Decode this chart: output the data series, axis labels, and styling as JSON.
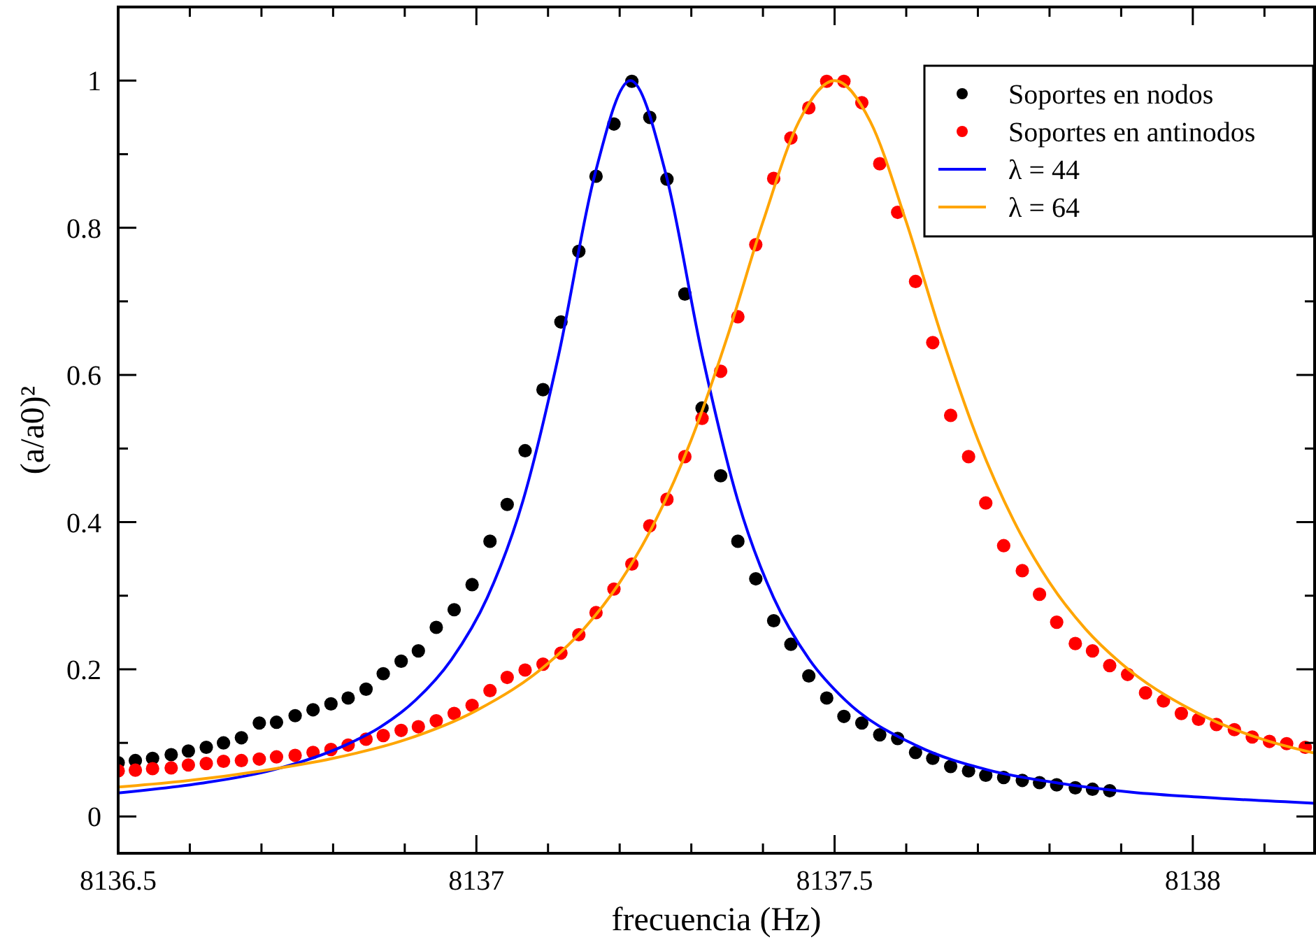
{
  "chart_data": {
    "type": "scatter",
    "xlabel": "frecuencia (Hz)",
    "ylabel": "(a/a0)²",
    "xlim": [
      8136.5,
      8138.17
    ],
    "ylim": [
      -0.05,
      1.1
    ],
    "xticks": [
      8136.5,
      {
        "value": 8136.6,
        "label": null
      },
      {
        "value": 8136.7,
        "label": null
      },
      {
        "value": 8136.8,
        "label": null
      },
      {
        "value": 8136.9,
        "label": null
      },
      8137,
      {
        "value": 8137.1,
        "label": null
      },
      {
        "value": 8137.2,
        "label": null
      },
      {
        "value": 8137.3,
        "label": null
      },
      {
        "value": 8137.4,
        "label": null
      },
      8137.5,
      {
        "value": 8137.6,
        "label": null
      },
      {
        "value": 8137.7,
        "label": null
      },
      {
        "value": 8137.8,
        "label": null
      },
      {
        "value": 8137.9,
        "label": null
      },
      8138,
      {
        "value": 8138.1,
        "label": null
      }
    ],
    "yticks": [
      0,
      {
        "value": 0.1,
        "label": null
      },
      0.2,
      {
        "value": 0.3,
        "label": null
      },
      0.4,
      {
        "value": 0.5,
        "label": null
      },
      0.6,
      {
        "value": 0.7,
        "label": null
      },
      0.8,
      {
        "value": 0.9,
        "label": null
      },
      1
    ],
    "grid": false,
    "legend": "top right",
    "series": [
      {
        "name": "Soportes en nodos",
        "color": "#000000",
        "marker": "circle",
        "x": [
          8136.5,
          8136.524,
          8136.548,
          8136.574,
          8136.598,
          8136.623,
          8136.647,
          8136.672,
          8136.697,
          8136.721,
          8136.747,
          8136.772,
          8136.797,
          8136.821,
          8136.846,
          8136.87,
          8136.895,
          8136.919,
          8136.944,
          8136.969,
          8136.994,
          8137.019,
          8137.043,
          8137.068,
          8137.093,
          8137.118,
          8137.143,
          8137.167,
          8137.192,
          8137.217,
          8137.242,
          8137.266,
          8137.291,
          8137.315,
          8137.341,
          8137.365,
          8137.39,
          8137.415,
          8137.439,
          8137.464,
          8137.489,
          8137.513,
          8137.538,
          8137.563,
          8137.588,
          8137.613,
          8137.637,
          8137.662,
          8137.687,
          8137.711,
          8137.736,
          8137.762,
          8137.786,
          8137.81,
          8137.836,
          8137.86,
          8137.884
        ],
        "values": [
          0.073,
          0.076,
          0.079,
          0.084,
          0.089,
          0.094,
          0.1,
          0.107,
          0.127,
          0.128,
          0.137,
          0.145,
          0.153,
          0.161,
          0.173,
          0.194,
          0.211,
          0.225,
          0.257,
          0.281,
          0.315,
          0.374,
          0.424,
          0.497,
          0.58,
          0.672,
          0.768,
          0.87,
          0.941,
          0.999,
          0.95,
          0.866,
          0.71,
          0.555,
          0.463,
          0.374,
          0.323,
          0.266,
          0.234,
          0.191,
          0.161,
          0.136,
          0.127,
          0.111,
          0.106,
          0.087,
          0.079,
          0.068,
          0.062,
          0.056,
          0.053,
          0.049,
          0.046,
          0.043,
          0.039,
          0.037,
          0.035
        ]
      },
      {
        "name": "Soportes en antinodos",
        "color": "#ff0000",
        "marker": "circle",
        "x": [
          8136.5,
          8136.524,
          8136.548,
          8136.574,
          8136.598,
          8136.623,
          8136.647,
          8136.672,
          8136.697,
          8136.721,
          8136.747,
          8136.772,
          8136.797,
          8136.821,
          8136.846,
          8136.87,
          8136.895,
          8136.919,
          8136.944,
          8136.969,
          8136.994,
          8137.019,
          8137.043,
          8137.068,
          8137.093,
          8137.118,
          8137.143,
          8137.167,
          8137.192,
          8137.217,
          8137.242,
          8137.266,
          8137.291,
          8137.315,
          8137.341,
          8137.365,
          8137.39,
          8137.415,
          8137.439,
          8137.464,
          8137.489,
          8137.513,
          8137.538,
          8137.563,
          8137.588,
          8137.613,
          8137.637,
          8137.662,
          8137.687,
          8137.711,
          8137.736,
          8137.762,
          8137.786,
          8137.81,
          8137.836,
          8137.86,
          8137.884,
          8137.909,
          8137.934,
          8137.959,
          8137.984,
          8138.008,
          8138.033,
          8138.058,
          8138.083,
          8138.107,
          8138.131,
          8138.157
        ],
        "values": [
          0.062,
          0.063,
          0.065,
          0.066,
          0.07,
          0.072,
          0.075,
          0.076,
          0.078,
          0.081,
          0.083,
          0.087,
          0.091,
          0.097,
          0.105,
          0.11,
          0.117,
          0.122,
          0.13,
          0.14,
          0.151,
          0.171,
          0.189,
          0.199,
          0.207,
          0.222,
          0.247,
          0.277,
          0.309,
          0.343,
          0.395,
          0.431,
          0.489,
          0.541,
          0.605,
          0.679,
          0.777,
          0.867,
          0.922,
          0.963,
          0.999,
          0.999,
          0.97,
          0.887,
          0.821,
          0.727,
          0.644,
          0.545,
          0.489,
          0.426,
          0.368,
          0.334,
          0.302,
          0.264,
          0.235,
          0.225,
          0.205,
          0.193,
          0.168,
          0.157,
          0.14,
          0.132,
          0.125,
          0.118,
          0.108,
          0.102,
          0.099,
          0.094
        ]
      },
      {
        "type": "line",
        "name": "λ = 44",
        "color": "#0000ff",
        "marker": "none",
        "x": [
          8136.5,
          8136.615,
          8136.715,
          8136.815,
          8136.865,
          8136.915,
          8136.965,
          8137.015,
          8137.065,
          8137.115,
          8137.165,
          8137.215,
          8137.265,
          8137.315,
          8137.365,
          8137.415,
          8137.465,
          8137.515,
          8137.615,
          8137.715,
          8137.815,
          8137.915,
          8138.015,
          8138.17
        ],
        "values": [
          0.032,
          0.045,
          0.063,
          0.096,
          0.121,
          0.158,
          0.213,
          0.297,
          0.429,
          0.628,
          0.871,
          1,
          0.871,
          0.628,
          0.429,
          0.297,
          0.213,
          0.158,
          0.096,
          0.063,
          0.045,
          0.033,
          0.026,
          0.018
        ]
      },
      {
        "type": "line",
        "name": "λ = 64",
        "color": "#ffa500",
        "marker": "none",
        "x": [
          8136.5,
          8136.6,
          8136.7,
          8136.8,
          8136.9,
          8137,
          8137.1,
          8137.15,
          8137.2,
          8137.25,
          8137.3,
          8137.35,
          8137.4,
          8137.45,
          8137.5,
          8137.55,
          8137.6,
          8137.65,
          8137.7,
          8137.75,
          8137.8,
          8137.85,
          8137.9,
          8138,
          8138.1,
          8138.17
        ],
        "values": [
          0.04,
          0.049,
          0.062,
          0.079,
          0.104,
          0.144,
          0.208,
          0.255,
          0.318,
          0.402,
          0.512,
          0.651,
          0.808,
          0.944,
          1,
          0.944,
          0.808,
          0.651,
          0.512,
          0.402,
          0.318,
          0.255,
          0.208,
          0.144,
          0.104,
          0.086
        ]
      }
    ]
  }
}
